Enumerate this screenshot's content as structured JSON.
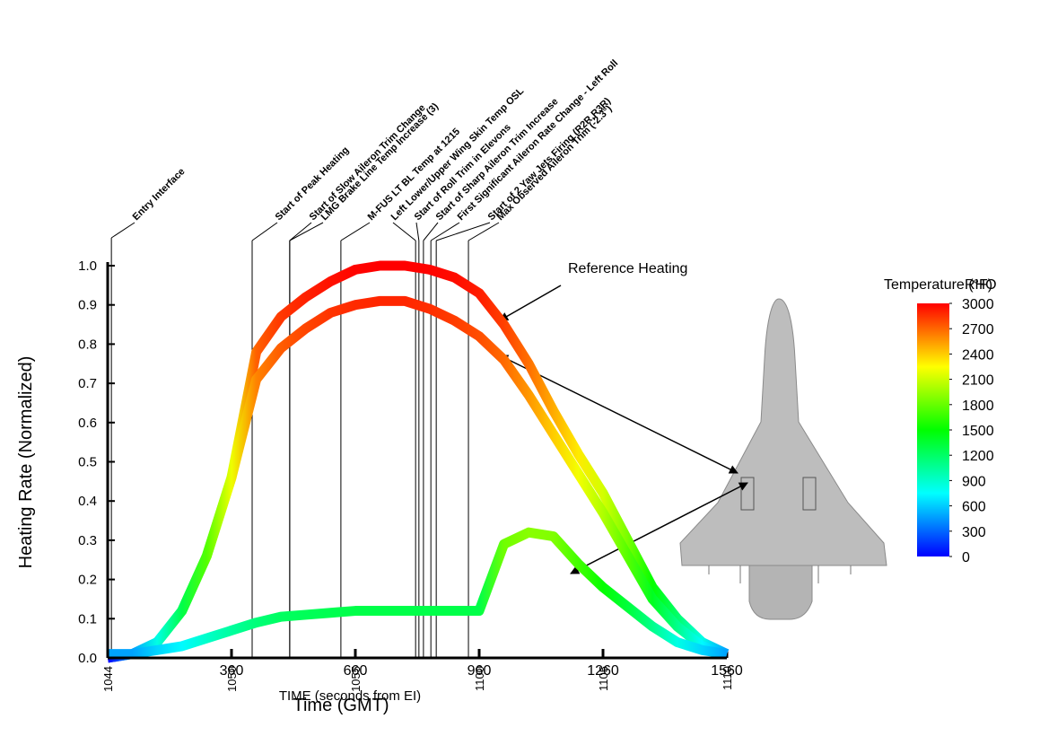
{
  "chart_data": {
    "type": "line",
    "ylabel": "Heating Rate (Normalized)",
    "xlabel": "TIME (seconds from EI)",
    "x2label": "Time (GMT)",
    "annotation": "Reference Heating",
    "x": [
      60,
      120,
      180,
      240,
      300,
      360,
      420,
      480,
      540,
      600,
      660,
      720,
      780,
      840,
      900,
      960,
      1020,
      1080,
      1140,
      1200,
      1260,
      1320,
      1380,
      1440,
      1500,
      1560
    ],
    "series": [
      {
        "values": [
          0,
          0.01,
          0.04,
          0.12,
          0.26,
          0.46,
          0.78,
          0.87,
          0.92,
          0.96,
          0.99,
          1.0,
          1.0,
          0.99,
          0.97,
          0.93,
          0.85,
          0.75,
          0.63,
          0.52,
          0.42,
          0.3,
          0.18,
          0.1,
          0.04,
          0.01
        ]
      },
      {
        "values": [
          0,
          0.01,
          0.04,
          0.12,
          0.26,
          0.46,
          0.71,
          0.79,
          0.84,
          0.88,
          0.9,
          0.91,
          0.91,
          0.89,
          0.86,
          0.82,
          0.76,
          0.67,
          0.57,
          0.47,
          0.37,
          0.26,
          0.15,
          0.08,
          0.03,
          0.01
        ]
      },
      {
        "values": [
          0.01,
          0.01,
          0.02,
          0.03,
          0.05,
          0.07,
          0.09,
          0.105,
          0.11,
          0.115,
          0.12,
          0.12,
          0.12,
          0.12,
          0.12,
          0.12,
          0.29,
          0.32,
          0.31,
          0.24,
          0.18,
          0.13,
          0.08,
          0.04,
          0.02,
          0.01
        ]
      }
    ],
    "xlim": [
      60,
      1560
    ],
    "xticks": [
      360,
      660,
      960,
      1260,
      1560
    ],
    "x2ticks": [
      {
        "value": 60,
        "label": "1044"
      },
      {
        "value": 360,
        "label": "1050"
      },
      {
        "value": 660,
        "label": "1055"
      },
      {
        "value": 960,
        "label": "1100"
      },
      {
        "value": 1260,
        "label": "1105"
      },
      {
        "value": 1560,
        "label": "1110"
      }
    ],
    "ylim": [
      0,
      1
    ],
    "yticks": [
      {
        "value": 0,
        "label": "0.0"
      },
      0.1,
      0.2,
      0.3,
      0.4,
      0.5,
      0.6,
      0.7,
      0.8,
      0.9,
      {
        "value": 1,
        "label": "1.0"
      }
    ],
    "events": [
      {
        "label": "Entry Interface",
        "x": 69
      },
      {
        "label": "Start of Peak Heating",
        "x": 410
      },
      {
        "label": "Start of Slow Aileron Trim Change",
        "x": 501
      },
      {
        "label": "LMG Brake Line Temp Increase (3)",
        "x": 501
      },
      {
        "label": "M-FUS LT BL Temp at 1215",
        "x": 625
      },
      {
        "label": "Left Lower/Upper Wing Skin Temp OSL",
        "x": 806
      },
      {
        "label": "Start of Roll Trim in Elevons",
        "x": 814
      },
      {
        "label": "Start of Sharp Aileron Trim Increase",
        "x": 825
      },
      {
        "label": "First Significant Aileron Rate Change - Left Roll",
        "x": 843
      },
      {
        "label": "Start of 2 Yaw Jets Firing (R2R,R3R)",
        "x": 856
      },
      {
        "label": "Max Observed Aileron Trim (-2.3°)",
        "x": 934
      }
    ],
    "colorbar": {
      "title": "Temperature (°F)",
      "overlay_label": "RHO",
      "lim": [
        0,
        3000
      ],
      "ticks": [
        0,
        300,
        600,
        900,
        1200,
        1500,
        1800,
        2100,
        2400,
        2700,
        3000
      ],
      "colors": [
        "#0000ff",
        "#00ffff",
        "#00ff00",
        "#ffff00",
        "#ff0000"
      ]
    }
  }
}
